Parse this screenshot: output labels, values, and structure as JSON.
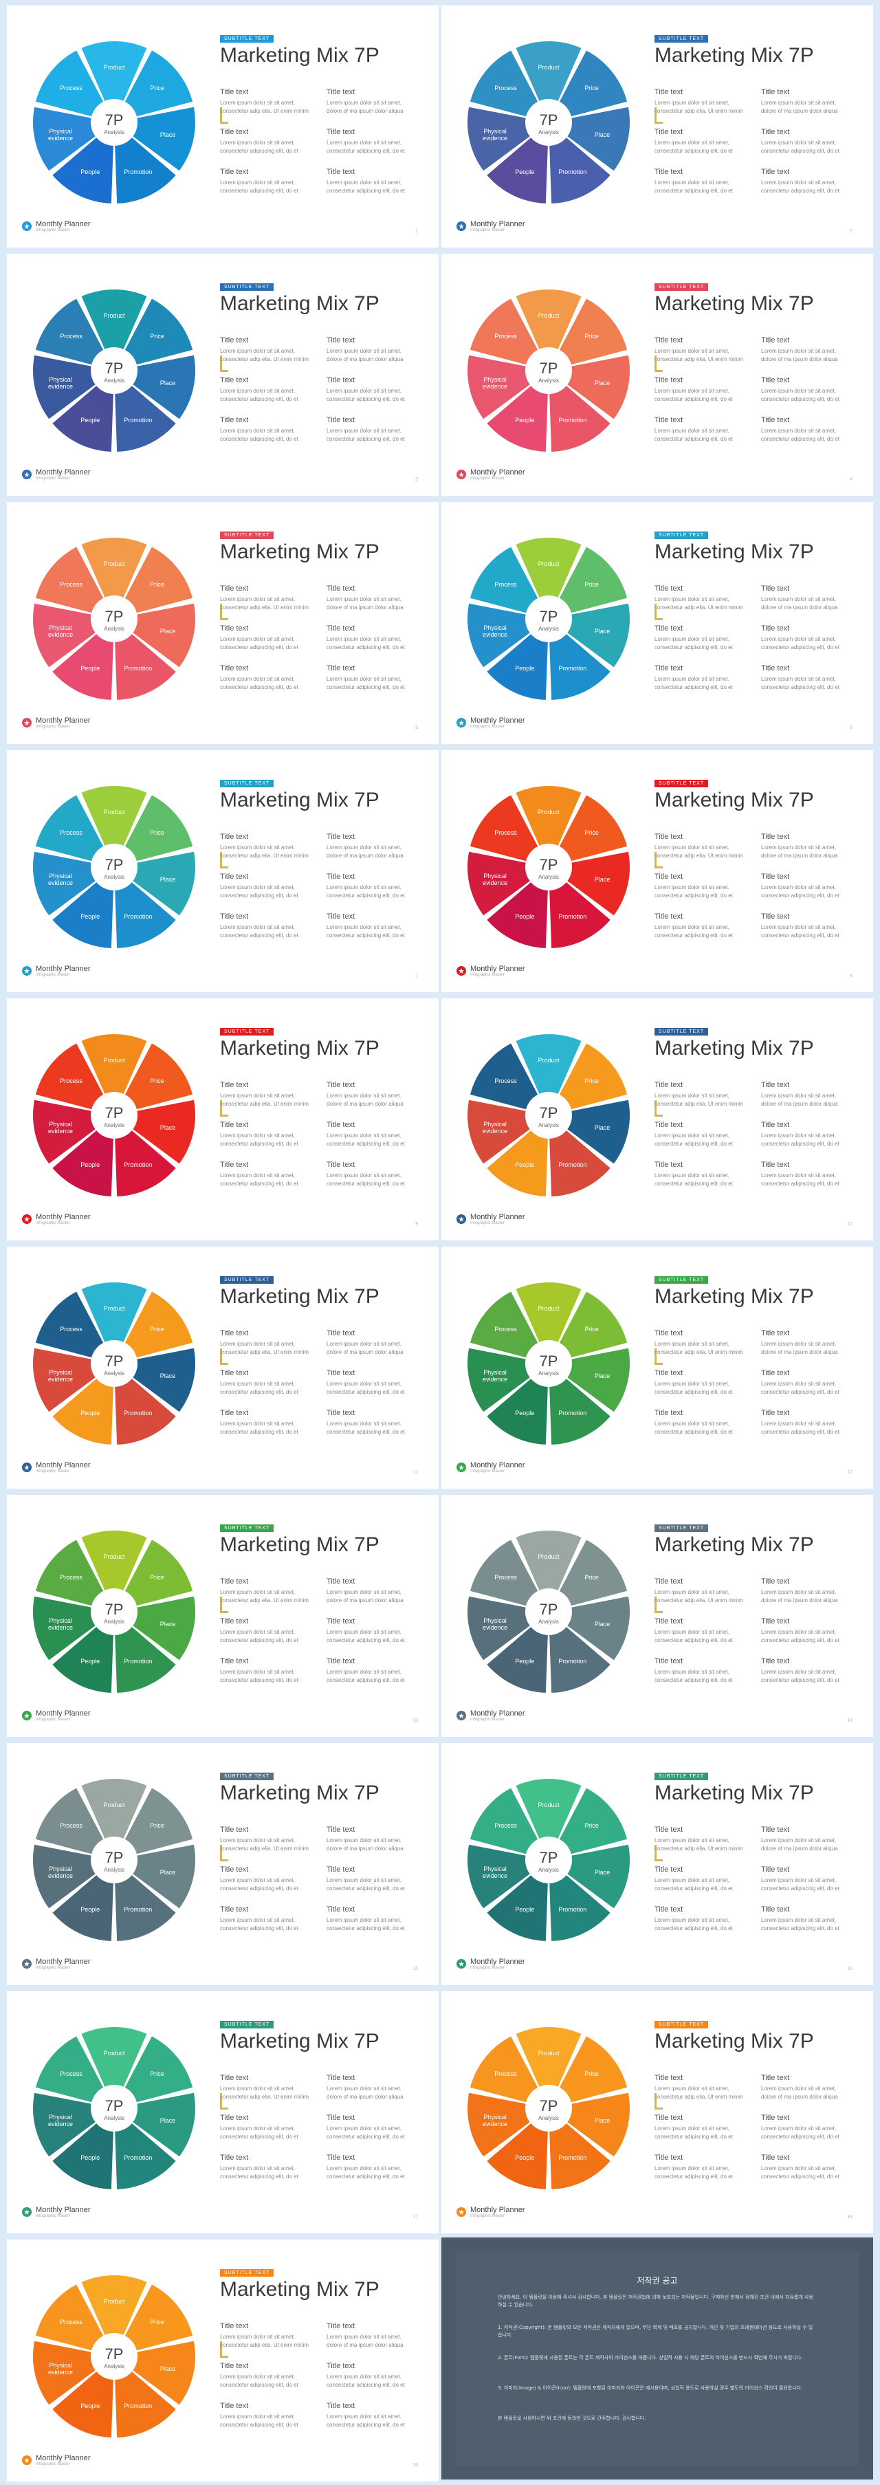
{
  "slide_title": "Marketing Mix 7P",
  "badge_text": "SUBTITLE TEXT",
  "wheel": {
    "center_title": "7P",
    "center_sub": "Analysis",
    "labels": [
      "Product",
      "Price",
      "Place",
      "Promotion",
      "People",
      "Physical\nevidence",
      "Process"
    ]
  },
  "text_blocks": [
    {
      "title": "Title text",
      "lines": [
        "Lorem ipsum dolor sit sit amet,",
        "consectetur adip elia. Ut enim minim"
      ]
    },
    {
      "title": "Title text",
      "lines": [
        "Lorem ipsum dolor sit sit amet,",
        "dolore of ma ipsum dolor aliqua"
      ]
    },
    {
      "title": "Title text",
      "lines": [
        "Lorem ipsum dolor sit sit amet,",
        "consectetur adipiscing elit, do et"
      ]
    },
    {
      "title": "Title text",
      "lines": [
        "Lorem ipsum dolor sit sit amet,",
        "consectetur adipiscing elit, do et"
      ]
    },
    {
      "title": "Title text",
      "lines": [
        "Lorem ipsum dolor sit sit amet,",
        "consectetur adipiscing elit, do et"
      ]
    },
    {
      "title": "Title text",
      "lines": [
        "Lorem ipsum dolor sit sit amet,",
        "consectetur adipiscing elit, do et"
      ]
    }
  ],
  "footer": {
    "name": "Monthly Planner",
    "sub": "Infographic Master"
  },
  "slides": [
    {
      "accent": "#1e9be0",
      "page": "1",
      "palette": [
        "#29b6e8",
        "#1ea8e0",
        "#1592d6",
        "#1280cc",
        "#1a6fd0",
        "#2a8ad8",
        "#1faee6"
      ]
    },
    {
      "accent": "#2f6fb4",
      "page": "2",
      "palette": [
        "#3aa0c8",
        "#2f86c0",
        "#3a78b8",
        "#4a5fae",
        "#5a4c9e",
        "#4a64a8",
        "#2f90c4"
      ]
    },
    {
      "accent": "#2f6fb4",
      "page": "3",
      "palette": [
        "#1ca0a8",
        "#1f8ab8",
        "#2a76b4",
        "#3a62a8",
        "#4a4e98",
        "#3a5aa0",
        "#2a7fb4"
      ]
    },
    {
      "accent": "#e2475a",
      "page": "4",
      "palette": [
        "#f39a4a",
        "#f08050",
        "#ee6a5a",
        "#ea5668",
        "#e84a70",
        "#ea5870",
        "#f07858"
      ]
    },
    {
      "accent": "#e2475a",
      "page": "5",
      "palette": [
        "#f39a4a",
        "#f08050",
        "#ee6a5a",
        "#ea5668",
        "#e84a70",
        "#ea5870",
        "#f07858"
      ]
    },
    {
      "accent": "#22a2c4",
      "page": "6",
      "palette": [
        "#9ccd3a",
        "#5fbe6a",
        "#2aa8b4",
        "#1d8fcc",
        "#1a7ec8",
        "#2490cc",
        "#22a8c8"
      ]
    },
    {
      "accent": "#22a2c4",
      "page": "7",
      "palette": [
        "#9ccd3a",
        "#5fbe6a",
        "#2aa8b4",
        "#1d8fcc",
        "#1a7ec8",
        "#2490cc",
        "#22a8c8"
      ]
    },
    {
      "accent": "#e11b22",
      "page": "8",
      "palette": [
        "#f38b1c",
        "#f05a1e",
        "#ea2a22",
        "#d8163a",
        "#c91346",
        "#d41c3e",
        "#ec3a20"
      ]
    },
    {
      "accent": "#e11b22",
      "page": "9",
      "palette": [
        "#f38b1c",
        "#f05a1e",
        "#ea2a22",
        "#d8163a",
        "#c91346",
        "#d41c3e",
        "#ec3a20"
      ]
    },
    {
      "accent": "#2e5f95",
      "page": "10",
      "palette": [
        "#2cb5d0",
        "#f59a1c",
        "#1f5f8e",
        "#d84a3c",
        "#f59a1c",
        "#d84a3c",
        "#1f5f8e"
      ]
    },
    {
      "accent": "#2e5f95",
      "page": "11",
      "palette": [
        "#2cb5d0",
        "#f59a1c",
        "#1f5f8e",
        "#d84a3c",
        "#f59a1c",
        "#d84a3c",
        "#1f5f8e"
      ]
    },
    {
      "accent": "#3aa84a",
      "page": "12",
      "palette": [
        "#a6c82a",
        "#7cbd35",
        "#4aa845",
        "#2f9450",
        "#1f8356",
        "#2a9052",
        "#5aac42"
      ]
    },
    {
      "accent": "#3aa84a",
      "page": "13",
      "palette": [
        "#a6c82a",
        "#7cbd35",
        "#4aa845",
        "#2f9450",
        "#1f8356",
        "#2a9052",
        "#5aac42"
      ]
    },
    {
      "accent": "#5c7280",
      "page": "14",
      "palette": [
        "#9aa7a3",
        "#7e9292",
        "#6a8388",
        "#56707e",
        "#4a6676",
        "#58707c",
        "#7a8e90"
      ]
    },
    {
      "accent": "#5c7280",
      "page": "15",
      "palette": [
        "#9aa7a3",
        "#7e9292",
        "#6a8388",
        "#56707e",
        "#4a6676",
        "#58707c",
        "#7a8e90"
      ]
    },
    {
      "accent": "#2e9c7c",
      "page": "16",
      "palette": [
        "#42c08a",
        "#34ae86",
        "#2a9a82",
        "#23867c",
        "#217474",
        "#26827a",
        "#34ae86"
      ]
    },
    {
      "accent": "#2e9c7c",
      "page": "17",
      "palette": [
        "#42c08a",
        "#34ae86",
        "#2a9a82",
        "#23867c",
        "#217474",
        "#26827a",
        "#34ae86"
      ]
    },
    {
      "accent": "#f5861a",
      "page": "18",
      "palette": [
        "#f9a825",
        "#f8961e",
        "#f6851a",
        "#f37416",
        "#f06412",
        "#f27318",
        "#f8951e"
      ]
    },
    {
      "accent": "#f5861a",
      "page": "19",
      "palette": [
        "#f9a825",
        "#f8961e",
        "#f6851a",
        "#f37416",
        "#f06412",
        "#f27318",
        "#f8951e"
      ]
    }
  ],
  "copyright": {
    "title": "저작권 공고",
    "paragraphs": [
      "안녕하세요. 이 템플릿을 이용해 주셔서 감사합니다. 본 템플릿은 저작권법에 의해 보호되는 저작물입니다. 구매하신 분께서 정해진 조건 내에서 자유롭게 사용하실 수 있습니다.",
      "1. 저작권(Copyright): 본 템플릿의 모든 저작권은 제작자에게 있으며, 무단 복제 및 배포를 금지합니다. 개인 및 기업의 프레젠테이션 용도로 사용하실 수 있습니다.",
      "2. 폰트(Font): 템플릿에 사용된 폰트는 각 폰트 제작사의 라이선스를 따릅니다. 상업적 사용 시 해당 폰트의 라이선스를 반드시 확인해 주시기 바랍니다.",
      "3. 이미지(Image) & 아이콘(Icon): 템플릿에 포함된 이미지와 아이콘은 예시용이며, 상업적 용도로 사용하실 경우 별도의 라이선스 확인이 필요합니다.",
      "본 템플릿을 사용하시면 위 조건에 동의한 것으로 간주합니다. 감사합니다."
    ]
  }
}
